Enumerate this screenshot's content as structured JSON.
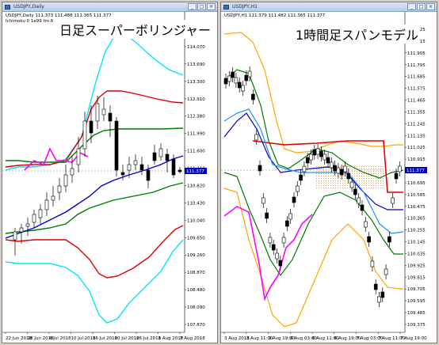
{
  "left": {
    "window_title": "USDJPY,Daily",
    "info_line1": "USDJPY,Daily  111.373 111.488 111.365 111.377",
    "info_line2": "Ichimoku 0 1e99 tm 6",
    "big_title": "日足スーパーボリンジャー",
    "current_price": "111.377",
    "y_labels": [
      "114.470",
      "114.070",
      "113.690",
      "113.300",
      "112.910",
      "112.380",
      "111.990",
      "111.600",
      "111.210",
      "110.820",
      "110.430",
      "110.040",
      "109.650",
      "109.260",
      "108.870",
      "108.480",
      "108.090",
      "107.870"
    ],
    "x_labels": [
      "22 Jun 2018",
      "28 Jun 2018",
      "4 Jul 2018",
      "10 Jul 2018",
      "16 Jul 2018",
      "20 Jul 2018",
      "26 Jul 2018",
      "1 Aug 2018",
      "7 Aug 2018"
    ]
  },
  "right": {
    "window_title": "USDJPY,H1",
    "info_line1": "USDJPY,H1  111.379 111.482 111.365 111.377",
    "info_line2": "",
    "big_title": "1時間足スパンモデル",
    "current_price": "111.377",
    "y_labels": [
      "112.125",
      "112.015",
      "111.905",
      "111.795",
      "111.685",
      "111.575",
      "111.465",
      "111.355",
      "111.245",
      "111.135",
      "111.025",
      "110.915",
      "110.805",
      "110.695",
      "110.585",
      "110.475",
      "110.365",
      "110.255",
      "110.145",
      "110.035",
      "109.925",
      "109.815",
      "109.705",
      "109.595",
      "109.485",
      "109.375"
    ],
    "x_labels": [
      "3 Aug 2018",
      "3 Aug 11:00",
      "3 Aug 19:00",
      "6 Aug 03:00",
      "6 Aug 11:00",
      "6 Aug 19:00",
      "7 Aug 03:00",
      "7 Aug 11:00",
      "7 Aug 19:00"
    ]
  },
  "colors": {
    "cyan": "#00e5ff",
    "red": "#e00000",
    "green": "#007a00",
    "blue": "#0000d0",
    "magenta": "#ff00ff",
    "orange": "#ffa500",
    "dodger": "#1e90ff",
    "black": "#000000",
    "price_box": "#0000c0"
  },
  "window_buttons": [
    "_",
    "□",
    "×"
  ]
}
